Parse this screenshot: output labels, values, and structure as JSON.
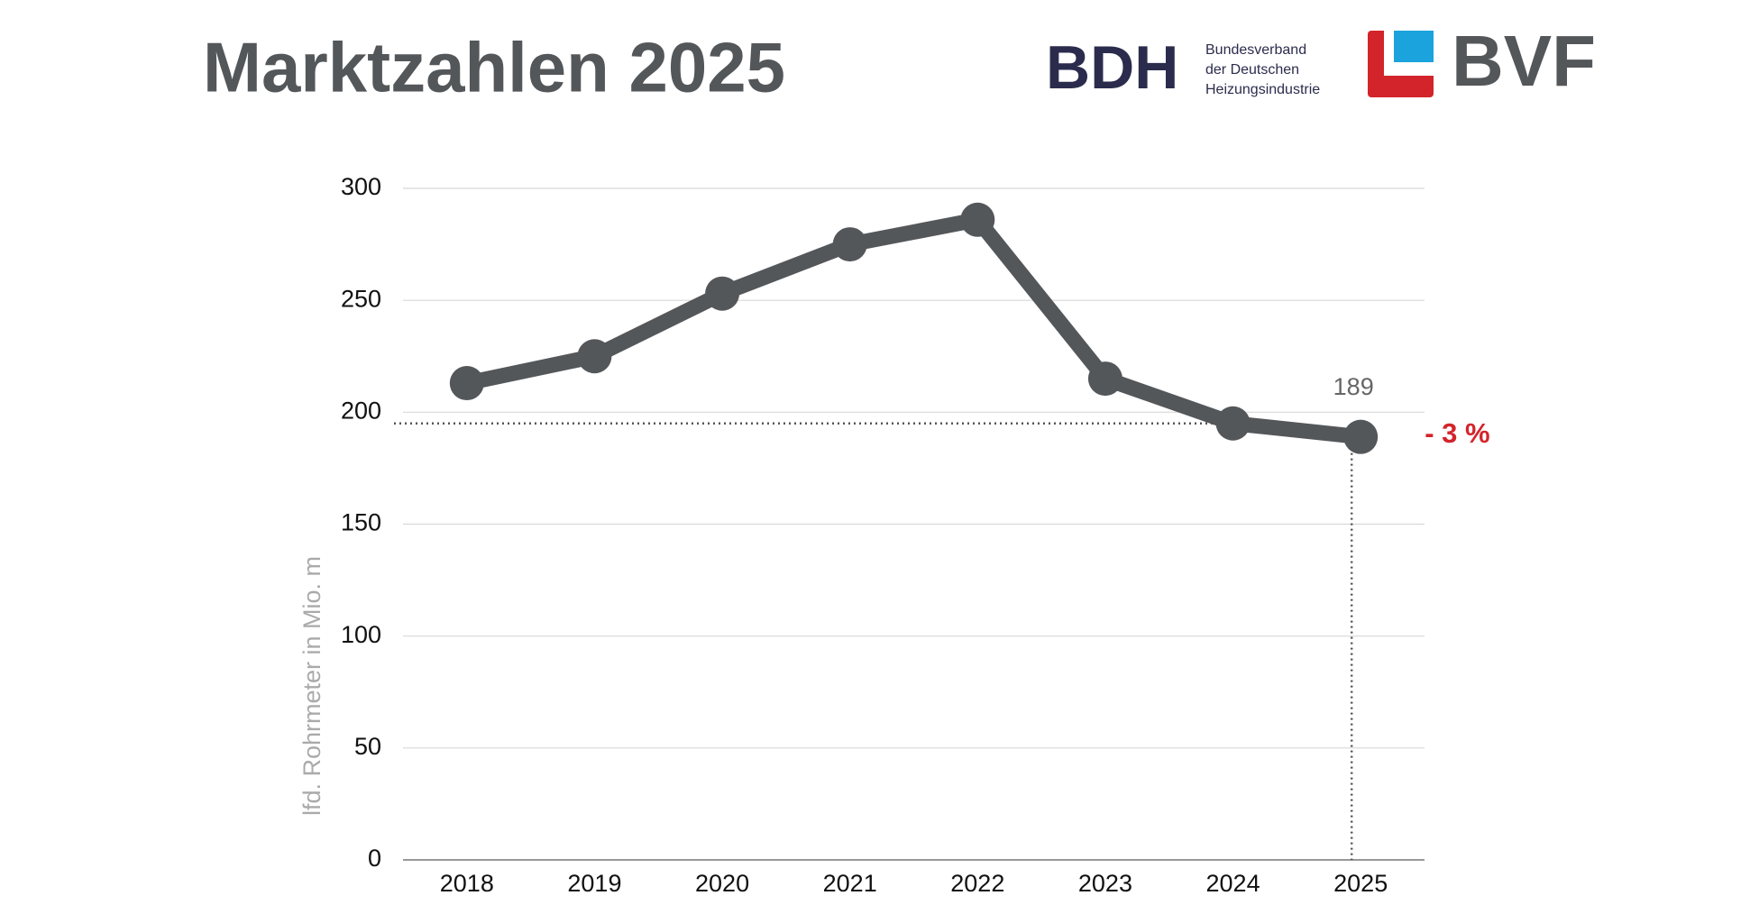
{
  "header": {
    "title": "Marktzahlen 2025",
    "logo_bdh": "BDH",
    "logo_bdh_text": [
      "Bundesverband",
      "der Deutschen",
      "Heizungsindustrie"
    ],
    "logo_bvf": "BVF"
  },
  "chart_data": {
    "type": "line",
    "y_label": "lfd. Rohrmeter in Mio. m",
    "categories": [
      "2018",
      "2019",
      "2020",
      "2021",
      "2022",
      "2023",
      "2024",
      "2025"
    ],
    "series": [
      {
        "name": "Rohrmeter",
        "color": "#54575a",
        "values": [
          213,
          225,
          253,
          275,
          286,
          215,
          195,
          189
        ]
      }
    ],
    "value_label": "189",
    "annotation": "- 3 %",
    "annotation_color": "#d3242b",
    "ylim": [
      0,
      300
    ],
    "yticks": [
      0,
      50,
      100,
      150,
      200,
      250,
      300
    ],
    "grid": true
  }
}
